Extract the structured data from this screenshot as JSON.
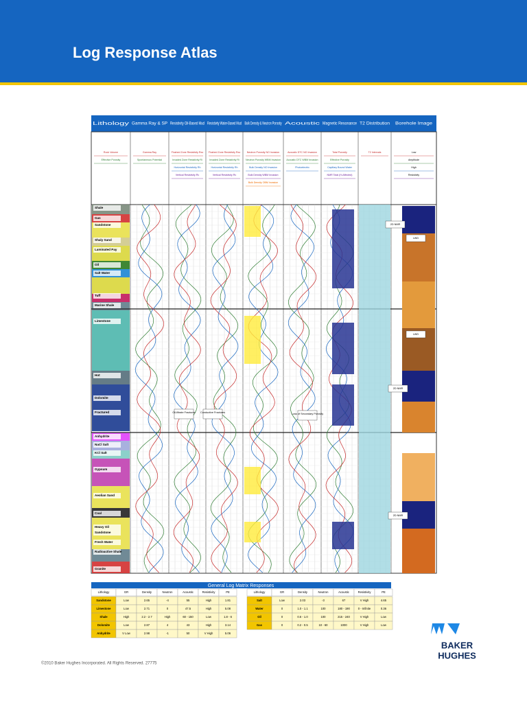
{
  "header": {
    "title": "Log Response Atlas"
  },
  "columns": [
    "Lithology",
    "Gamma Ray & SP",
    "Resistivity Oil-Based Mud",
    "Resistivity Water-Based Mud",
    "Bulk Density & Neutron Porosity",
    "Acoustic",
    "Magnetic Resonance",
    "T2 Distribution",
    "Borehole Image"
  ],
  "legends": [
    [
      "Rock Volume",
      "Effective Porosity"
    ],
    [
      "Gamma Ray",
      "Spontaneous Potential"
    ],
    [
      "Flushed Zone Resistivity Rxo",
      "Invaded Zone Resistivity Ri",
      "Horizontal Resistivity Rh",
      "Vertical Resistivity Rv"
    ],
    [
      "Flushed Zone Resistivity Rxo",
      "Invaded Zone Resistivity Ri",
      "Horizontal Resistivity Rh",
      "Vertical Resistivity Rv"
    ],
    [
      "Neutron Porosity NO Invasion",
      "Neutron Porosity WBM Invasion",
      "Bulk Density NO Invasion",
      "Bulk Density WBM Invasion",
      "Bulk Density OBM Invasion"
    ],
    [
      "Acoustic DTC NO Invasion",
      "Acoustic DTC WBM Invasion",
      "Photoelectric"
    ],
    [
      "Total Porosity",
      "Effective Porosity",
      "Capillary Bound Water",
      "NMR Total (H-Affected)"
    ],
    [
      "T2 Intervals"
    ],
    [
      "Low",
      "Amplitude",
      "High",
      "Resistivity"
    ]
  ],
  "lithology": [
    "Shale",
    "Gas",
    "Sandstone",
    "Shaly Sand",
    "Laminated Pay",
    "Oil",
    "Salt Water",
    "Tuff",
    "Marine Shale",
    "Limestone",
    "Hot",
    "Dolomite",
    "Fractured",
    "Anhydrite",
    "NaCl Salt",
    "KCl Salt",
    "Gypsum",
    "Aeolian Sand",
    "Coal",
    "Sandstone",
    "Heavy Oil",
    "Fresh Water",
    "Radioactive Shale",
    "Granite"
  ],
  "annotations": [
    "Oil-filtrate Fractures",
    "Conductive Fractures",
    "Loss of Secondary Porosity",
    "2D NMR",
    "LWD",
    "LWD",
    "2D NMR",
    "2D NMR"
  ],
  "table": {
    "title": "General Log Matrix Responses",
    "headers": [
      "Lithology",
      "GR",
      "Density",
      "Neutron",
      "Acoustic",
      "Resistivity",
      "PE"
    ],
    "left_rows": [
      [
        "Sandstone",
        "Low",
        "2.65",
        "-4",
        "55",
        "High",
        "1.81"
      ],
      [
        "Limestone",
        "Low",
        "2.71",
        "0",
        "47.5",
        "High",
        "5.08"
      ],
      [
        "Shale",
        "High",
        "2.2 - 2.7",
        "High",
        "60 - 150",
        "Low",
        "1.8 - 6"
      ],
      [
        "Dolomite",
        "Low",
        "2.87",
        "4",
        "43",
        "High",
        "3.14"
      ],
      [
        "Anhydrite",
        "V Low",
        "2.98",
        "-1",
        "50",
        "V High",
        "5.06"
      ]
    ],
    "right_rows": [
      [
        "Salt",
        "Low",
        "2.03",
        "-3",
        "67",
        "V High",
        "4.65"
      ],
      [
        "Water",
        "0",
        "1.0 - 1.1",
        "100",
        "180 - 190",
        "0 - Infinite",
        "0.36"
      ],
      [
        "Oil",
        "0",
        "0.6 - 1.0",
        "100",
        "215 - 240",
        "V High",
        "Low"
      ],
      [
        "Gas",
        "0",
        "0.2 - 0.5",
        "10 - 60",
        "1000",
        "V High",
        "Low"
      ]
    ]
  },
  "footer": {
    "copyright": "©2010 Baker Hughes Incorporated. All Rights Reserved. 27775",
    "logo": [
      "BAKER",
      "HUGHES"
    ]
  }
}
